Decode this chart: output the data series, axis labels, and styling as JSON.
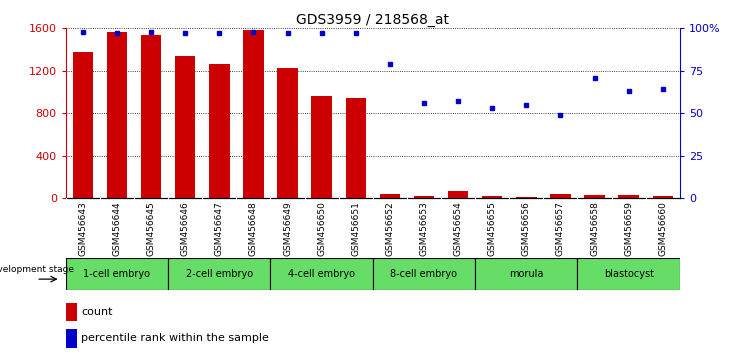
{
  "title": "GDS3959 / 218568_at",
  "samples": [
    "GSM456643",
    "GSM456644",
    "GSM456645",
    "GSM456646",
    "GSM456647",
    "GSM456648",
    "GSM456649",
    "GSM456650",
    "GSM456651",
    "GSM456652",
    "GSM456653",
    "GSM456654",
    "GSM456655",
    "GSM456656",
    "GSM456657",
    "GSM456658",
    "GSM456659",
    "GSM456660"
  ],
  "counts": [
    1380,
    1570,
    1540,
    1340,
    1260,
    1580,
    1230,
    960,
    940,
    40,
    20,
    70,
    20,
    10,
    40,
    30,
    30,
    20
  ],
  "percentile": [
    98,
    97,
    98,
    97,
    97,
    98,
    97,
    97,
    97,
    79,
    56,
    57,
    53,
    55,
    49,
    71,
    63,
    64
  ],
  "stages": [
    {
      "label": "1-cell embryo",
      "start": 0,
      "end": 3
    },
    {
      "label": "2-cell embryo",
      "start": 3,
      "end": 6
    },
    {
      "label": "4-cell embryo",
      "start": 6,
      "end": 9
    },
    {
      "label": "8-cell embryo",
      "start": 9,
      "end": 12
    },
    {
      "label": "morula",
      "start": 12,
      "end": 15
    },
    {
      "label": "blastocyst",
      "start": 15,
      "end": 18
    }
  ],
  "bar_color": "#CC0000",
  "dot_color": "#0000CC",
  "stage_color": "#66DD66",
  "tick_bg_color": "#C8C8C8",
  "ylim_left": [
    0,
    1600
  ],
  "ylim_right": [
    0,
    100
  ],
  "yticks_left": [
    0,
    400,
    800,
    1200,
    1600
  ],
  "yticks_right": [
    0,
    25,
    50,
    75,
    100
  ],
  "background_color": "#ffffff"
}
